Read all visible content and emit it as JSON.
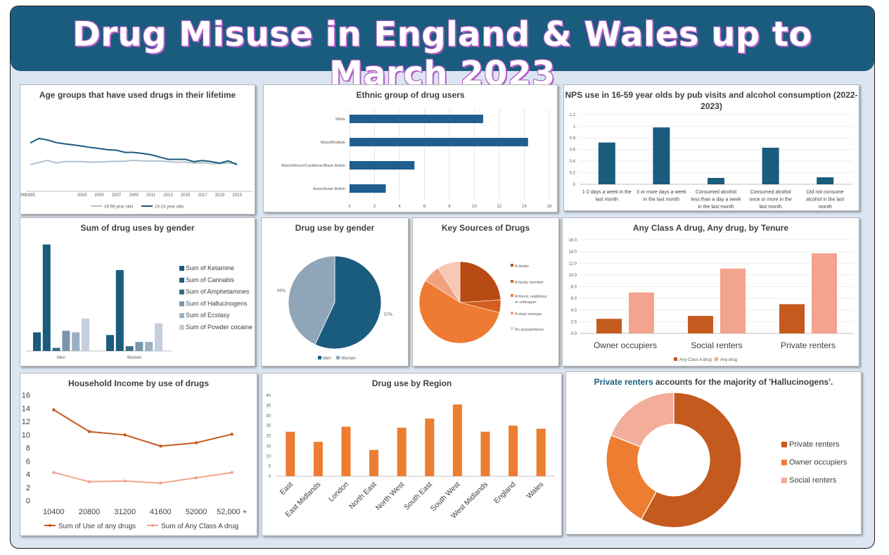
{
  "page": {
    "title": "Drug Misuse in England & Wales up to March 2023"
  },
  "colors": {
    "banner": "#1a5c7e",
    "navy": "#1a5c7e",
    "grey": "#b3c0cc",
    "orange": "#c55a1e",
    "lightorange": "#ed7d31",
    "salmon": "#f2a48e"
  },
  "chart_data": [
    {
      "id": "age",
      "type": "line",
      "title": "Age groups that have used drugs in their lifetime",
      "x": [
        "1995",
        "1996",
        "1998",
        "2000",
        "2001",
        "2002",
        "2003",
        "2004",
        "2005",
        "2006",
        "2007",
        "2008",
        "2009",
        "2010",
        "2011",
        "2012",
        "2013",
        "2014",
        "2015",
        "2016",
        "2017",
        "2018",
        "2019",
        "2020",
        "2023"
      ],
      "xticks": [
        "1995",
        "1999",
        "2003",
        "2005",
        "2007",
        "2009",
        "2011",
        "2013",
        "2015",
        "2017",
        "2019",
        "2023"
      ],
      "series": [
        {
          "name": "16-59 year olds",
          "color": "#b3c0cc",
          "values": [
            34.0,
            35.5,
            36.8,
            35.2,
            36.0,
            36.0,
            36.0,
            35.7,
            35.8,
            36.0,
            36.2,
            36.3,
            36.8,
            36.5,
            36.4,
            36.5,
            36.0,
            35.5,
            35.8,
            35.0,
            35.3,
            34.7,
            34.8,
            35.2,
            35.0
          ]
        },
        {
          "name": "16-24 year olds",
          "color": "#1a5c7e",
          "values": [
            48.0,
            51.0,
            50.0,
            48.3,
            47.5,
            46.8,
            46.0,
            45.2,
            44.5,
            43.7,
            43.4,
            42.0,
            42.0,
            41.3,
            40.5,
            39.0,
            37.5,
            37.5,
            37.5,
            36.0,
            36.7,
            36.0,
            35.0,
            36.5,
            34.0
          ]
        }
      ],
      "ylim": [
        20,
        60
      ],
      "legend": "bottom"
    },
    {
      "id": "ethnic",
      "type": "bar",
      "orientation": "horizontal",
      "title": "Ethnic group of drug users",
      "categories": [
        "White",
        "Mixed/Multiple",
        "Black/African/Caribbean/Black British",
        "Asian/Asian British"
      ],
      "values": [
        10.7,
        14.3,
        5.2,
        2.9
      ],
      "xticks": [
        0,
        2,
        4,
        6,
        8,
        10,
        12,
        14,
        16
      ],
      "xlim": [
        0,
        16
      ]
    },
    {
      "id": "nps",
      "type": "bar",
      "title": "NPS use in 16-59 year olds by pub visits and alcohol consumption (2022-2023)",
      "categories": [
        [
          "1-2 days a week in the",
          "last month"
        ],
        [
          "3 or more days a week",
          "in the last month"
        ],
        [
          "Consumed alcohol",
          "less than a day a week",
          "in the last month"
        ],
        [
          "Consumed alcohol",
          "once or more in the",
          "last month"
        ],
        [
          "Did not consume",
          "alcohol in the last",
          "month"
        ]
      ],
      "values": [
        0.72,
        0.98,
        0.11,
        0.63,
        0.12
      ],
      "yticks": [
        "0",
        "0.2",
        "0.4",
        "0.6",
        "0.8",
        "1",
        "1.2"
      ],
      "ylim": [
        0,
        1.2
      ]
    },
    {
      "id": "gender_sum",
      "type": "bar",
      "title": "Sum of  drug uses by gender",
      "categories": [
        "Men",
        "Women"
      ],
      "series": [
        {
          "name": "Sum of Ketamine",
          "color": "#1a5c7e",
          "values": [
            3.5,
            3.0
          ]
        },
        {
          "name": "Sum of Cannabis",
          "color": "#1a5c7e",
          "values": [
            20.0,
            15.2
          ]
        },
        {
          "name": "Sum of Amphetamines",
          "color": "#3d6b86",
          "values": [
            0.6,
            0.9
          ]
        },
        {
          "name": "Sum of Hallucinogens",
          "color": "#7b95ab",
          "values": [
            3.8,
            1.7
          ]
        },
        {
          "name": "Sum of Ecstasy",
          "color": "#9ab0c2",
          "values": [
            3.5,
            1.7
          ]
        },
        {
          "name": "Sum of Powder cocaine",
          "color": "#c4cfdb",
          "values": [
            6.1,
            5.2
          ]
        }
      ],
      "ylim": [
        0,
        21
      ],
      "legend": "right"
    },
    {
      "id": "gender_pie",
      "type": "pie",
      "title": "Drug use by gender",
      "categories": [
        "Men",
        "Women"
      ],
      "values": [
        57,
        43
      ],
      "labels": [
        "57%",
        "43%"
      ],
      "colors": [
        "#1a5c7e",
        "#8fa5b8"
      ],
      "legend": "bottom"
    },
    {
      "id": "sources",
      "type": "pie",
      "title": "Key Sources of Drugs",
      "categories": [
        "A dealer",
        [
          "A family member"
        ],
        [
          "A friend, neighbour",
          "or colleague"
        ],
        [
          "A stop/ stranger"
        ],
        [
          "An acquaintance"
        ]
      ],
      "legend_labels": [
        [
          "A dealer"
        ],
        [
          "A family member"
        ],
        [
          "A friend, neighbour",
          "or colleague"
        ],
        [
          "A stop/ stranger"
        ],
        [
          "An acquaintance"
        ]
      ],
      "values": [
        24,
        5,
        55,
        7,
        9
      ],
      "colors": [
        "#b84a14",
        "#d35f20",
        "#ef7a33",
        "#f0a27e",
        "#f7c8b6"
      ],
      "legend": "right"
    },
    {
      "id": "tenure",
      "type": "bar",
      "title": "Any Class A drug, Any drug, by Tenure",
      "categories": [
        "Owner occupiers",
        "Social renters",
        "Private renters"
      ],
      "series": [
        {
          "name": "Any Class A drug",
          "color": "#c55a1e",
          "values": [
            2.5,
            3.0,
            5.0
          ]
        },
        {
          "name": "Any drug",
          "color": "#f2a48e",
          "values": [
            7.0,
            11.1,
            13.7
          ]
        }
      ],
      "yticks": [
        "0.0",
        "2.0",
        "4.0",
        "6.0",
        "8.0",
        "10.0",
        "12.0",
        "14.0",
        "16.0"
      ],
      "ylim": [
        0,
        16
      ],
      "legend": "bottom"
    },
    {
      "id": "income",
      "type": "line",
      "title": "Household Income by use of drugs",
      "categories": [
        "10400",
        "20800",
        "31200",
        "41600",
        "52000",
        "52,000 +"
      ],
      "series": [
        {
          "name": "Sum of Use of any drugs",
          "color": "#c55a1e",
          "values": [
            13.8,
            10.5,
            10.0,
            8.3,
            8.8,
            10.1
          ]
        },
        {
          "name": "Sum of Any Class A drug",
          "color": "#f2a48e",
          "values": [
            4.3,
            2.9,
            3.0,
            2.7,
            3.5,
            4.3
          ]
        }
      ],
      "yticks": [
        "0",
        "2",
        "4",
        "6",
        "8",
        "10",
        "12",
        "14",
        "16"
      ],
      "ylim": [
        0,
        16
      ],
      "legend": "bottom"
    },
    {
      "id": "region",
      "type": "bar",
      "title": "Drug use by Region",
      "categories": [
        "East",
        "East Midlands",
        "London",
        "North East",
        "North West",
        "South East",
        "South West",
        "West Midlands",
        "England",
        "Wales"
      ],
      "values": [
        22.0,
        17.0,
        24.5,
        13.0,
        24.0,
        28.5,
        35.5,
        22.0,
        25.0,
        23.5
      ],
      "yticks": [
        "0",
        "5",
        "10",
        "15",
        "20",
        "25",
        "30",
        "35",
        "40"
      ],
      "ylim": [
        0,
        40
      ]
    },
    {
      "id": "private",
      "type": "pie",
      "donut": true,
      "title_highlight": "Private renters",
      "title_rest": " accounts for the majority of 'Hallucinogens'.",
      "categories": [
        "Private renters",
        "Owner occupiers",
        "Social renters"
      ],
      "values": [
        58,
        23,
        19
      ],
      "colors": [
        "#c55a1e",
        "#ed7d31",
        "#f2ad9b"
      ],
      "legend": "right"
    }
  ]
}
